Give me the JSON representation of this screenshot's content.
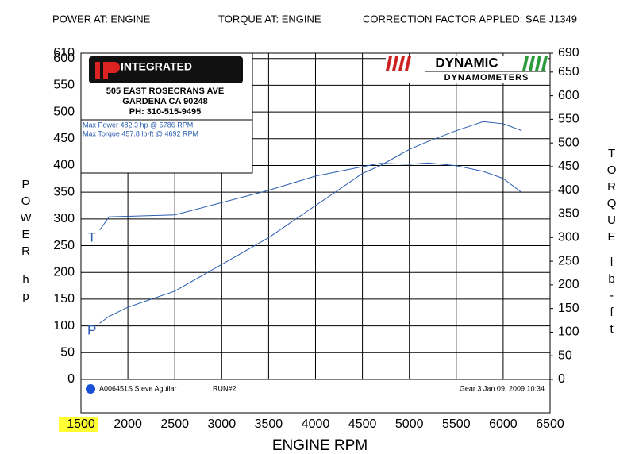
{
  "chart_data": {
    "type": "line",
    "header": [
      "POWER AT: ENGINE",
      "TORQUE AT: ENGINE",
      "CORRECTION FACTOR APPLED: SAE J1349"
    ],
    "xlabel": "ENGINE RPM",
    "ylabel": "POWER",
    "yunit": "hp",
    "y2label": "TORQUE",
    "y2unit": "lb-ft",
    "x": [
      1700,
      1800,
      2000,
      2500,
      3000,
      3500,
      4000,
      4500,
      4692,
      5000,
      5200,
      5500,
      5786,
      6000,
      6200
    ],
    "series": [
      {
        "name": "P",
        "color": "#2a5db0",
        "values": [
          105,
          118,
          135,
          165,
          215,
          265,
          325,
          385,
          400,
          430,
          445,
          465,
          482,
          478,
          465
        ]
      },
      {
        "name": "T",
        "color": "#2a5db0",
        "axis": "y2",
        "values": [
          316,
          344,
          345,
          348,
          374,
          400,
          430,
          450,
          457,
          455,
          458,
          452,
          440,
          425,
          395
        ]
      }
    ],
    "xlim": [
      1500,
      6500
    ],
    "xticks": [
      1500,
      2000,
      2500,
      3000,
      3500,
      4000,
      4500,
      5000,
      5500,
      6000,
      6500
    ],
    "ylim": [
      0,
      610
    ],
    "yticks": [
      0,
      50,
      100,
      150,
      200,
      250,
      300,
      350,
      400,
      450,
      500,
      550,
      600,
      610
    ],
    "y2lim": [
      0,
      690
    ],
    "y2ticks": [
      0,
      50,
      100,
      150,
      200,
      250,
      300,
      350,
      400,
      450,
      500,
      550,
      600,
      650,
      690
    ],
    "grid": true,
    "logo": {
      "brand": "INTEGRATED",
      "address": [
        "505 EAST ROSECRANS AVE",
        "GARDENA  CA 90248",
        "PH: 310-515-9495"
      ],
      "notes": [
        "Max Power 482.3 hp @ 5786 RPM",
        "Max Torque 457.8 lb-ft @ 4692 RPM"
      ]
    },
    "dyno": [
      "DYNAMIC",
      "DYNAMOMETERS"
    ],
    "footer": [
      "A006451S Steve Aguilar",
      "RUN#2",
      "Gear 3 Jan 09, 2009 10:34"
    ]
  }
}
